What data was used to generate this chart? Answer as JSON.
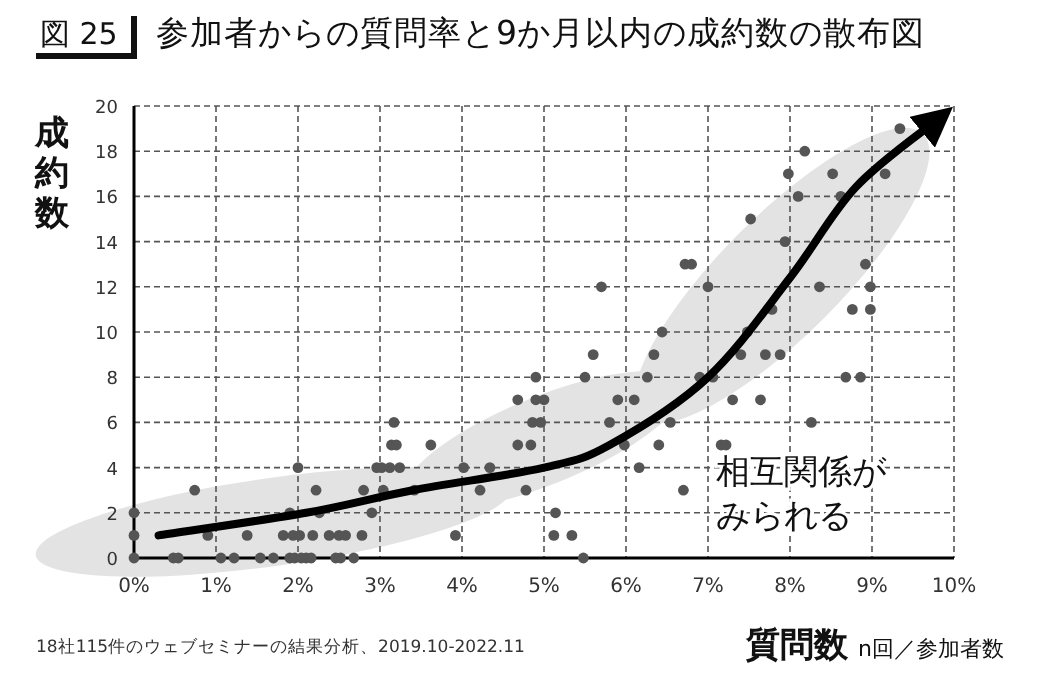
{
  "chart_data": {
    "type": "scatter",
    "title": "参加者からの質問率と9か月以内の成約数の散布図",
    "xlabel": "質問数 n回／参加者数",
    "ylabel": "成約数",
    "annotations": [
      "図 25",
      "相互関係が",
      "みられる",
      "18社115件のウェブセミナーの結果分析、2019.10-2022.11"
    ],
    "xlim": [
      0,
      10
    ],
    "ylim": [
      0,
      20
    ],
    "xticks": [
      {
        "value": 0,
        "label": "0%"
      },
      {
        "value": 1,
        "label": "1%"
      },
      {
        "value": 2,
        "label": "2%"
      },
      {
        "value": 3,
        "label": "3%"
      },
      {
        "value": 4,
        "label": "4%"
      },
      {
        "value": 5,
        "label": "5%"
      },
      {
        "value": 6,
        "label": "6%"
      },
      {
        "value": 7,
        "label": "7%"
      },
      {
        "value": 8,
        "label": "8%"
      },
      {
        "value": 9,
        "label": "9%"
      },
      {
        "value": 10,
        "label": "10%"
      }
    ],
    "yticks": [
      0,
      2,
      4,
      6,
      8,
      10,
      12,
      14,
      16,
      18,
      20
    ],
    "grid": true,
    "series": [
      {
        "type": "scatter",
        "marker": "circle",
        "color": "#555555",
        "x": [
          0,
          0,
          0,
          0.48,
          0.54,
          0.74,
          0.9,
          1.06,
          1.22,
          1.38,
          1.54,
          1.7,
          1.82,
          1.9,
          1.9,
          1.94,
          1.96,
          2.02,
          2.0,
          2.04,
          2.1,
          2.16,
          2.18,
          2.22,
          2.26,
          2.38,
          2.46,
          2.52,
          2.5,
          2.58,
          2.68,
          2.78,
          2.8,
          2.9,
          2.96,
          3.04,
          3.02,
          3.12,
          3.14,
          3.2,
          3.17,
          3.24,
          3.42,
          3.62,
          3.92,
          4.02,
          4.22,
          4.34,
          4.68,
          4.68,
          4.9,
          4.84,
          4.78,
          4.86,
          4.96,
          4.9,
          5.0,
          5.14,
          5.12,
          5.34,
          5.48,
          5.5,
          5.6,
          5.7,
          5.8,
          5.9,
          6.1,
          5.98,
          6.16,
          6.26,
          6.34,
          6.4,
          6.44,
          6.54,
          6.7,
          6.72,
          6.8,
          6.9,
          7.0,
          7.06,
          7.16,
          7.22,
          7.3,
          7.4,
          7.48,
          7.52,
          7.64,
          7.7,
          7.78,
          7.88,
          7.94,
          7.98,
          8.1,
          8.18,
          8.26,
          8.36,
          8.52,
          8.62,
          8.68,
          8.76,
          8.86,
          8.92,
          8.98,
          8.98,
          9.16,
          9.34
        ],
        "values": [
          2,
          1,
          0,
          0,
          0,
          3,
          1,
          0,
          0,
          1,
          0,
          0,
          1,
          2,
          0,
          1,
          0,
          1,
          4,
          0,
          0,
          0,
          1,
          3,
          2,
          1,
          0,
          0,
          1,
          1,
          0,
          1,
          3,
          2,
          4,
          3,
          4,
          4,
          5,
          5,
          6,
          4,
          3,
          5,
          1,
          4,
          3,
          4,
          5,
          7,
          8,
          5,
          3,
          6,
          6,
          7,
          7,
          2,
          1,
          1,
          0,
          8,
          9,
          12,
          6,
          7,
          7,
          5,
          4,
          8,
          9,
          5,
          10,
          6,
          3,
          13,
          13,
          8,
          12,
          8,
          5,
          5,
          7,
          9,
          10,
          15,
          7,
          9,
          11,
          9,
          14,
          17,
          16,
          18,
          6,
          12,
          17,
          16,
          8,
          11,
          8,
          13,
          12,
          11,
          17,
          19
        ]
      },
      {
        "type": "line",
        "color": "#000000",
        "x": [
          0.3,
          2.1,
          3.4,
          5.0,
          5.8,
          7.0,
          8.0,
          8.8,
          9.8
        ],
        "values": [
          1,
          2,
          3,
          4,
          5,
          8,
          12.4,
          16.4,
          19.4
        ]
      }
    ]
  }
}
